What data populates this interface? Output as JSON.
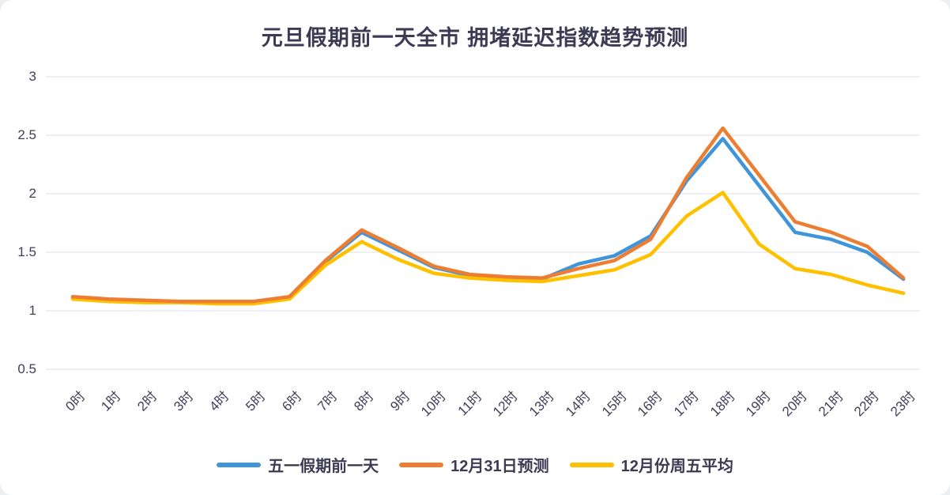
{
  "page": {
    "background": "#eceef1",
    "card_background": "#ffffff",
    "grid_color": "#dcdfe6",
    "text_color": "#3d3a54"
  },
  "chart_data": {
    "type": "line",
    "title": "元旦假期前一天全市 拥堵延迟指数趋势预测",
    "x_labels": [
      "0时",
      "1时",
      "2时",
      "3时",
      "4时",
      "5时",
      "6时",
      "7时",
      "8时",
      "9时",
      "10时",
      "11时",
      "12时",
      "13时",
      "14时",
      "15时",
      "16时",
      "17时",
      "18时",
      "19时",
      "20时",
      "21时",
      "22时",
      "23时"
    ],
    "y_ticks": [
      3,
      2.5,
      2,
      1.5,
      1,
      0.5
    ],
    "ylim": [
      0.5,
      3
    ],
    "grid": true,
    "legend_position": "bottom",
    "draw_order": [
      0,
      2,
      1
    ],
    "series": [
      {
        "name": "五一假期前一天",
        "color": "#3E95D9",
        "values": [
          1.11,
          1.09,
          1.08,
          1.08,
          1.07,
          1.07,
          1.11,
          1.42,
          1.67,
          1.52,
          1.37,
          1.3,
          1.28,
          1.27,
          1.4,
          1.47,
          1.64,
          2.11,
          2.47,
          2.07,
          1.67,
          1.61,
          1.5,
          1.27
        ]
      },
      {
        "name": "12月31日预测",
        "color": "#ED7D31",
        "values": [
          1.12,
          1.1,
          1.09,
          1.08,
          1.08,
          1.08,
          1.12,
          1.43,
          1.69,
          1.54,
          1.38,
          1.31,
          1.29,
          1.28,
          1.36,
          1.43,
          1.61,
          2.14,
          2.56,
          2.16,
          1.76,
          1.67,
          1.55,
          1.28
        ]
      },
      {
        "name": "12月份周五平均",
        "color": "#FFC000",
        "values": [
          1.1,
          1.08,
          1.07,
          1.07,
          1.06,
          1.06,
          1.1,
          1.39,
          1.59,
          1.44,
          1.32,
          1.28,
          1.26,
          1.25,
          1.3,
          1.35,
          1.48,
          1.81,
          2.01,
          1.57,
          1.36,
          1.31,
          1.22,
          1.15
        ]
      }
    ]
  }
}
